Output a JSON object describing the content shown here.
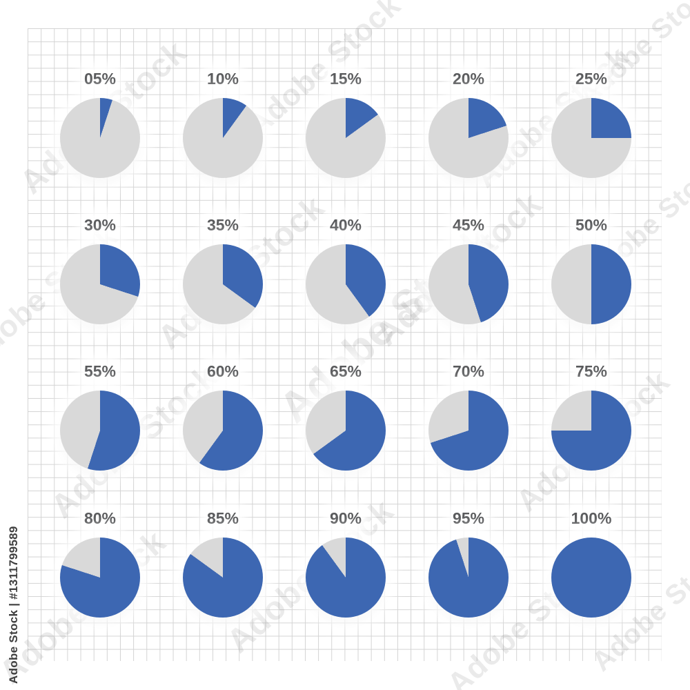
{
  "chart_data": {
    "type": "pie",
    "title": "",
    "categories": [
      "05%",
      "10%",
      "15%",
      "20%",
      "25%",
      "30%",
      "35%",
      "40%",
      "45%",
      "50%",
      "55%",
      "60%",
      "65%",
      "70%",
      "75%",
      "80%",
      "85%",
      "90%",
      "95%",
      "100%"
    ],
    "values": [
      5,
      10,
      15,
      20,
      25,
      30,
      35,
      40,
      45,
      50,
      55,
      60,
      65,
      70,
      75,
      80,
      85,
      90,
      95,
      100
    ],
    "colors": {
      "filled": "#3d67b2",
      "remainder": "#d9d9d9"
    },
    "layout": {
      "columns": 5,
      "rows": 4,
      "fill_start": "top",
      "fill_direction": "clockwise",
      "legend": false,
      "grid_paper": true
    }
  },
  "watermark": {
    "tile_label": "Adobe Stock",
    "id_label": "Adobe Stock | #1311799589"
  },
  "colors": {
    "label_text": "#58595b",
    "grid_line": "#d3d3d3",
    "background": "#ffffff"
  }
}
